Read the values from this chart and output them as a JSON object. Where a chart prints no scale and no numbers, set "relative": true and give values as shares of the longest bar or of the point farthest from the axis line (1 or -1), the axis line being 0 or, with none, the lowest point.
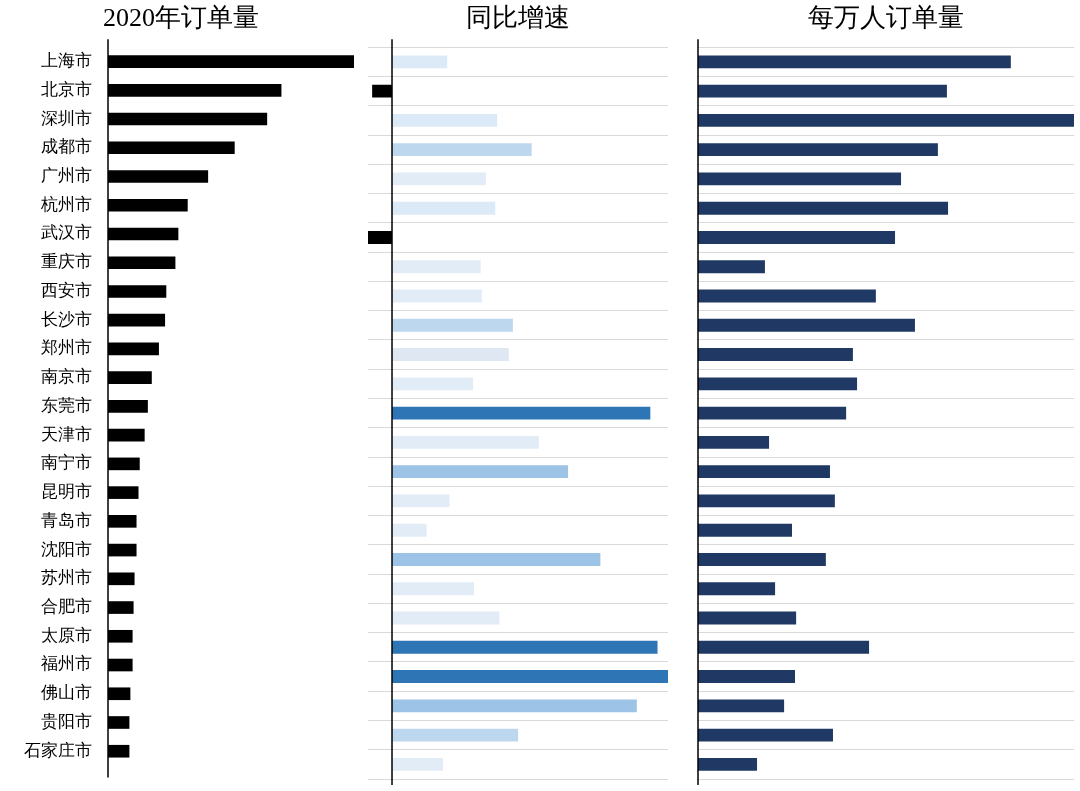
{
  "chart_data": [
    {
      "type": "bar",
      "orientation": "horizontal",
      "relative": true,
      "title": "2020年订单量",
      "tick_labels": "y",
      "categories": [
        "上海市",
        "北京市",
        "深圳市",
        "成都市",
        "广州市",
        "杭州市",
        "武汉市",
        "重庆市",
        "西安市",
        "长沙市",
        "郑州市",
        "南京市",
        "东莞市",
        "天津市",
        "南宁市",
        "昆明市",
        "青岛市",
        "沈阳市",
        "苏州市",
        "合肥市",
        "太原市",
        "福州市",
        "佛山市",
        "贵阳市",
        "石家庄市"
      ],
      "values": [
        1,
        0.705,
        0.647,
        0.515,
        0.407,
        0.324,
        0.286,
        0.274,
        0.237,
        0.232,
        0.207,
        0.178,
        0.162,
        0.149,
        0.129,
        0.124,
        0.116,
        0.116,
        0.108,
        0.104,
        0.1,
        0.1,
        0.091,
        0.087,
        0.087
      ],
      "color": "#000000"
    },
    {
      "type": "bar",
      "orientation": "horizontal",
      "relative": true,
      "title": "同比增速",
      "tick_labels": false,
      "grid": "y",
      "categories": [
        null,
        null,
        null,
        null,
        null,
        null,
        null,
        null,
        null,
        null,
        null,
        null,
        null,
        null,
        null,
        null,
        null,
        null,
        null,
        null,
        null,
        null,
        null,
        null,
        null
      ],
      "values": [
        0.2,
        -0.072,
        0.381,
        0.506,
        0.34,
        0.374,
        -0.087,
        0.321,
        0.325,
        0.438,
        0.423,
        0.294,
        0.936,
        0.532,
        0.638,
        0.208,
        0.125,
        0.755,
        0.297,
        0.389,
        0.962,
        1,
        0.887,
        0.457,
        0.185
      ],
      "colors": [
        "#dce9f6",
        "#000000",
        "#dce9f6",
        "#bdd7ee",
        "#e2ecf7",
        "#dce9f6",
        "#000000",
        "#e2ecf7",
        "#e2ecf7",
        "#bdd7ee",
        "#dfe8f2",
        "#e2ecf7",
        "#2e75b6",
        "#e2ecf7",
        "#9dc3e6",
        "#e2ecf7",
        "#e2ecf7",
        "#9dc3e6",
        "#e2ecf7",
        "#e2ecf7",
        "#2e75b6",
        "#2e75b6",
        "#9dc3e6",
        "#bdd7ee",
        "#e2ecf7"
      ]
    },
    {
      "type": "bar",
      "orientation": "horizontal",
      "relative": true,
      "title": "每万人订单量",
      "tick_labels": false,
      "grid": "y",
      "categories": [
        null,
        null,
        null,
        null,
        null,
        null,
        null,
        null,
        null,
        null,
        null,
        null,
        null,
        null,
        null,
        null,
        null,
        null,
        null,
        null,
        null,
        null,
        null,
        null,
        null
      ],
      "values": [
        0.832,
        0.662,
        1,
        0.638,
        0.54,
        0.665,
        0.524,
        0.178,
        0.473,
        0.577,
        0.412,
        0.423,
        0.394,
        0.189,
        0.351,
        0.364,
        0.25,
        0.34,
        0.205,
        0.261,
        0.455,
        0.258,
        0.229,
        0.359,
        0.157
      ],
      "color": "#1f3864"
    }
  ]
}
